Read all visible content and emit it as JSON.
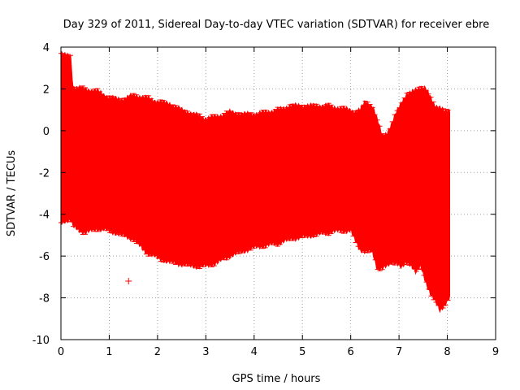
{
  "chart_data": {
    "type": "errorbar-band",
    "title": "Day 329 of 2011, Sidereal Day-to-day VTEC variation (SDTVAR) for receiver ebre",
    "xlabel": "GPS time / hours",
    "ylabel": "SDTVAR / TECUs",
    "xlim": [
      0,
      9
    ],
    "ylim": [
      -10,
      4
    ],
    "xticks": [
      0,
      1,
      2,
      3,
      4,
      5,
      6,
      7,
      8,
      9
    ],
    "yticks": [
      -10,
      -8,
      -6,
      -4,
      -2,
      0,
      2,
      4
    ],
    "xtick_labels": [
      "0",
      "1",
      "2",
      "3",
      "4",
      "5",
      "6",
      "7",
      "8",
      "9"
    ],
    "ytick_labels": [
      "-10",
      "-8",
      "-6",
      "-4",
      "-2",
      "0",
      "2",
      "4"
    ],
    "grid": true,
    "series": [
      {
        "name": "SDTVAR",
        "color": "#ff0000",
        "upper": [
          [
            0.0,
            3.7
          ],
          [
            0.1,
            3.6
          ],
          [
            0.2,
            3.6
          ],
          [
            0.25,
            2.1
          ],
          [
            0.5,
            2.0
          ],
          [
            0.75,
            1.9
          ],
          [
            1.0,
            1.6
          ],
          [
            1.25,
            1.5
          ],
          [
            1.5,
            1.7
          ],
          [
            1.75,
            1.6
          ],
          [
            2.0,
            1.4
          ],
          [
            2.25,
            1.3
          ],
          [
            2.5,
            1.0
          ],
          [
            2.75,
            0.8
          ],
          [
            3.0,
            0.6
          ],
          [
            3.25,
            0.7
          ],
          [
            3.5,
            0.9
          ],
          [
            3.75,
            0.8
          ],
          [
            4.0,
            0.8
          ],
          [
            4.25,
            0.9
          ],
          [
            4.5,
            1.0
          ],
          [
            4.75,
            1.2
          ],
          [
            5.0,
            1.2
          ],
          [
            5.25,
            1.2
          ],
          [
            5.5,
            1.2
          ],
          [
            5.75,
            1.1
          ],
          [
            6.0,
            1.0
          ],
          [
            6.1,
            0.9
          ],
          [
            6.2,
            1.0
          ],
          [
            6.3,
            1.4
          ],
          [
            6.45,
            1.2
          ],
          [
            6.55,
            0.5
          ],
          [
            6.65,
            -0.2
          ],
          [
            6.75,
            -0.1
          ],
          [
            6.85,
            0.3
          ],
          [
            6.95,
            0.9
          ],
          [
            7.05,
            1.4
          ],
          [
            7.15,
            1.7
          ],
          [
            7.25,
            1.8
          ],
          [
            7.35,
            2.0
          ],
          [
            7.45,
            2.1
          ],
          [
            7.55,
            2.0
          ],
          [
            7.65,
            1.6
          ],
          [
            7.75,
            1.2
          ],
          [
            7.85,
            1.1
          ],
          [
            7.95,
            0.9
          ],
          [
            8.05,
            1.0
          ]
        ],
        "lower": [
          [
            0.0,
            -4.4
          ],
          [
            0.1,
            -4.3
          ],
          [
            0.2,
            -4.3
          ],
          [
            0.25,
            -4.6
          ],
          [
            0.5,
            -4.9
          ],
          [
            0.75,
            -4.7
          ],
          [
            1.0,
            -4.8
          ],
          [
            1.25,
            -5.0
          ],
          [
            1.5,
            -5.2
          ],
          [
            1.75,
            -5.8
          ],
          [
            2.0,
            -6.1
          ],
          [
            2.25,
            -6.3
          ],
          [
            2.5,
            -6.4
          ],
          [
            2.75,
            -6.5
          ],
          [
            3.0,
            -6.5
          ],
          [
            3.25,
            -6.3
          ],
          [
            3.5,
            -6.0
          ],
          [
            3.75,
            -5.8
          ],
          [
            4.0,
            -5.6
          ],
          [
            4.25,
            -5.5
          ],
          [
            4.5,
            -5.4
          ],
          [
            4.75,
            -5.2
          ],
          [
            5.0,
            -5.1
          ],
          [
            5.25,
            -5.0
          ],
          [
            5.5,
            -4.9
          ],
          [
            5.75,
            -4.8
          ],
          [
            6.0,
            -4.8
          ],
          [
            6.1,
            -5.3
          ],
          [
            6.2,
            -5.7
          ],
          [
            6.3,
            -5.8
          ],
          [
            6.45,
            -5.8
          ],
          [
            6.55,
            -6.6
          ],
          [
            6.65,
            -6.6
          ],
          [
            6.75,
            -6.5
          ],
          [
            6.85,
            -6.3
          ],
          [
            6.95,
            -6.3
          ],
          [
            7.05,
            -6.6
          ],
          [
            7.15,
            -6.3
          ],
          [
            7.25,
            -6.4
          ],
          [
            7.35,
            -6.8
          ],
          [
            7.45,
            -6.5
          ],
          [
            7.55,
            -7.2
          ],
          [
            7.65,
            -7.8
          ],
          [
            7.75,
            -8.2
          ],
          [
            7.85,
            -8.6
          ],
          [
            7.95,
            -8.3
          ],
          [
            8.05,
            -8.0
          ]
        ],
        "outliers": [
          [
            1.4,
            -7.2
          ]
        ]
      }
    ]
  }
}
